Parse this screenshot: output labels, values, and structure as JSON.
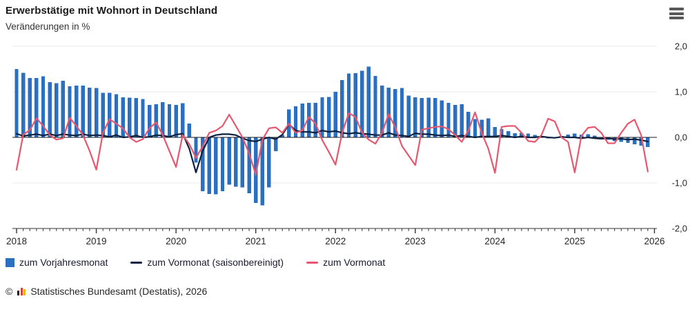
{
  "header": {
    "menu_icon": "hamburger-menu"
  },
  "chart_data": {
    "type": "bar+line",
    "title": "Erwerbstätige mit Wohnort in Deutschland",
    "subtitle": "Veränderungen in %",
    "unit": "%",
    "x_start": "2018-01",
    "x_frequency": "monthly",
    "x_years": [
      "2018",
      "2019",
      "2020",
      "2021",
      "2022",
      "2023",
      "2024",
      "2025",
      "2026"
    ],
    "ylim": [
      -2.0,
      2.0
    ],
    "grid": "horizontal",
    "legend_position": "bottom",
    "yticks": [
      {
        "v": 2,
        "label": "2,0"
      },
      {
        "v": 1,
        "label": "1,0"
      },
      {
        "v": 0,
        "label": "0,0"
      },
      {
        "v": -1,
        "label": "-1,0"
      },
      {
        "v": -2,
        "label": "-2,0"
      }
    ],
    "series": [
      {
        "name": "zum Vorjahresmonat",
        "type": "bar",
        "color": "#2b70c0",
        "values": [
          1.5,
          1.42,
          1.3,
          1.3,
          1.34,
          1.21,
          1.19,
          1.24,
          1.12,
          1.14,
          1.14,
          1.09,
          1.08,
          0.98,
          0.98,
          0.95,
          0.88,
          0.87,
          0.86,
          0.84,
          0.71,
          0.73,
          0.77,
          0.73,
          0.71,
          0.75,
          0.3,
          -0.55,
          -1.18,
          -1.24,
          -1.25,
          -1.18,
          -1.04,
          -1.08,
          -1.1,
          -1.23,
          -1.44,
          -1.49,
          -1.1,
          -0.3,
          0.05,
          0.61,
          0.68,
          0.74,
          0.76,
          0.76,
          0.88,
          0.89,
          1.0,
          1.26,
          1.4,
          1.41,
          1.46,
          1.55,
          1.35,
          1.14,
          1.09,
          1.06,
          1.08,
          0.92,
          0.88,
          0.86,
          0.87,
          0.86,
          0.81,
          0.76,
          0.71,
          0.73,
          0.56,
          0.4,
          0.39,
          0.42,
          0.23,
          0.18,
          0.14,
          0.09,
          0.1,
          0.08,
          0.05,
          0.03,
          -0.02,
          0.0,
          0.03,
          0.06,
          0.08,
          0.06,
          0.07,
          0.04,
          -0.02,
          -0.05,
          -0.08,
          -0.1,
          -0.12,
          -0.15,
          -0.18,
          -0.21
        ]
      },
      {
        "name": "zum Vormonat (saisonbereinigt)",
        "type": "line",
        "color": "#0c2040",
        "values": [
          0.08,
          0.03,
          0.05,
          0.07,
          0.04,
          0.07,
          0.04,
          0.07,
          0.05,
          0.04,
          0.07,
          0.04,
          0.05,
          0.04,
          0.01,
          0.05,
          0.0,
          0.01,
          0.04,
          0.0,
          0.01,
          0.05,
          0.04,
          0.01,
          0.06,
          0.08,
          -0.25,
          -0.77,
          -0.3,
          0.0,
          0.05,
          0.07,
          0.07,
          0.05,
          -0.02,
          -0.07,
          -0.09,
          -0.04,
          0.0,
          -0.04,
          0.06,
          0.29,
          0.15,
          0.12,
          0.12,
          0.1,
          0.15,
          0.12,
          0.14,
          0.1,
          0.08,
          0.1,
          0.08,
          0.07,
          0.05,
          0.05,
          0.1,
          0.05,
          0.04,
          0.02,
          0.09,
          0.07,
          0.07,
          0.05,
          0.04,
          0.05,
          0.02,
          0.04,
          0.02,
          0.0,
          0.02,
          0.02,
          0.02,
          0.04,
          0.02,
          0.0,
          0.02,
          0.0,
          0.0,
          0.02,
          0.0,
          -0.01,
          0.01,
          0.0,
          0.0,
          -0.02,
          0.0,
          -0.02,
          -0.03,
          -0.02,
          -0.04,
          -0.03,
          -0.05,
          -0.04,
          -0.06,
          -0.09
        ]
      },
      {
        "name": "zum Vormonat",
        "type": "line",
        "color": "#e8566e",
        "values": [
          -0.71,
          0.06,
          0.16,
          0.42,
          0.25,
          0.05,
          -0.05,
          -0.02,
          0.43,
          0.25,
          0.05,
          -0.3,
          -0.71,
          0.1,
          0.4,
          0.3,
          0.2,
          0.0,
          -0.1,
          -0.04,
          0.2,
          0.33,
          0.05,
          -0.3,
          -0.65,
          0.05,
          -0.15,
          -0.45,
          -0.2,
          0.1,
          0.15,
          0.25,
          0.5,
          0.25,
          0.0,
          -0.35,
          -0.82,
          -0.05,
          0.2,
          0.22,
          0.1,
          0.3,
          0.1,
          0.15,
          0.45,
          0.3,
          -0.06,
          -0.32,
          -0.6,
          0.1,
          0.53,
          0.45,
          0.1,
          -0.05,
          -0.14,
          0.1,
          0.51,
          0.22,
          -0.19,
          -0.4,
          -0.61,
          0.17,
          0.2,
          0.23,
          0.24,
          0.18,
          0.05,
          -0.1,
          0.15,
          0.55,
          0.1,
          -0.25,
          -0.78,
          0.23,
          0.25,
          0.25,
          0.1,
          -0.08,
          -0.1,
          0.05,
          0.41,
          0.35,
          0.0,
          -0.1,
          -0.77,
          0.03,
          0.21,
          0.23,
          0.1,
          -0.13,
          -0.13,
          0.1,
          0.3,
          0.39,
          0.05,
          -0.75
        ]
      }
    ]
  },
  "footer": {
    "copyright": "©",
    "logo_icon": "destatis-bars-icon",
    "source": "Statistisches Bundesamt (Destatis), 2026"
  }
}
